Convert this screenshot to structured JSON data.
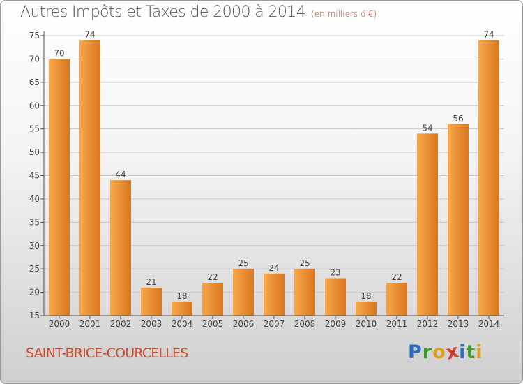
{
  "title": "Autres Impôts et Taxes de 2000 à 2014",
  "subtitle": "(en milliers d'€)",
  "commune": "SAINT-BRICE-COURCELLES",
  "logo": {
    "letters": [
      {
        "ch": "P",
        "color": "#2a6fbf"
      },
      {
        "ch": "r",
        "color": "#3a9a2a"
      },
      {
        "ch": "o",
        "color": "#e0a020"
      },
      {
        "ch": "x",
        "color": "#d43a2a"
      },
      {
        "ch": "i",
        "color": "#2a6fbf"
      },
      {
        "ch": "t",
        "color": "#3a9a2a"
      },
      {
        "ch": "i",
        "color": "#e0a020"
      }
    ]
  },
  "colors": {
    "bar_light": "#f7a84a",
    "bar_dark": "#d9761f",
    "axis": "#555555",
    "grid": "#c8c8c8"
  },
  "chart_data": {
    "type": "bar",
    "title": "Autres Impôts et Taxes de 2000 à 2014",
    "subtitle": "(en milliers d'€)",
    "categories": [
      "2000",
      "2001",
      "2002",
      "2003",
      "2004",
      "2005",
      "2006",
      "2007",
      "2008",
      "2009",
      "2010",
      "2011",
      "2012",
      "2013",
      "2014"
    ],
    "values": [
      70,
      74,
      44,
      21,
      18,
      22,
      25,
      24,
      25,
      23,
      18,
      22,
      54,
      56,
      74
    ],
    "ylim": [
      15,
      75
    ],
    "yticks": [
      15,
      20,
      25,
      30,
      35,
      40,
      45,
      50,
      55,
      60,
      65,
      70,
      75
    ],
    "grid": true,
    "data_labels": true
  }
}
